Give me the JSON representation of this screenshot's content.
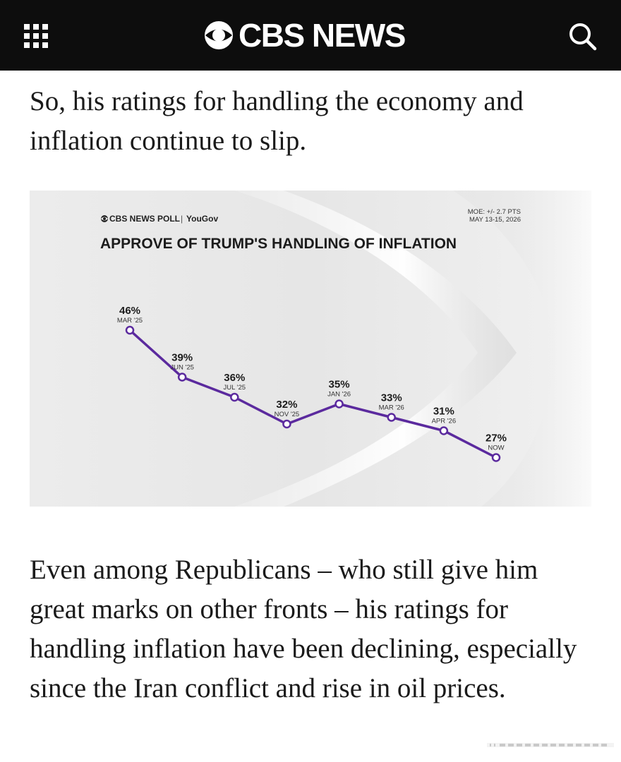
{
  "header": {
    "brand": "CBS NEWS",
    "menu_icon": "grid-menu-icon",
    "search_icon": "search-icon",
    "colors": {
      "bar": "#0d0d0d",
      "text": "#ffffff"
    }
  },
  "article": {
    "paragraph_1": "So, his ratings for handling the economy and inflation continue to slip.",
    "paragraph_2": "Even among Republicans – who still give him great marks on other fronts – his ratings for handling inflation have been declining, especially since the Iran conflict and rise in oil prices."
  },
  "graphic": {
    "poll_source": "CBS NEWS POLL",
    "partner": "YouGov",
    "moe": "MOE: +/- 2.7 PTS",
    "dates": "MAY 13-15, 2026",
    "accent_color": "#5b2a9e"
  },
  "chart_data": {
    "type": "line",
    "title": "APPROVE OF TRUMP'S HANDLING OF INFLATION",
    "x": [
      "MAR '25",
      "JUN '25",
      "JUL '25",
      "NOV '25",
      "JAN '26",
      "MAR '26",
      "APR '26",
      "NOW"
    ],
    "series": [
      {
        "values": [
          46,
          39,
          36,
          32,
          35,
          33,
          31,
          27
        ]
      }
    ],
    "data_labels": [
      "46%",
      "39%",
      "36%",
      "32%",
      "35%",
      "33%",
      "31%",
      "27%"
    ],
    "ylim": [
      20,
      50
    ],
    "grid": false,
    "legend": "none"
  }
}
